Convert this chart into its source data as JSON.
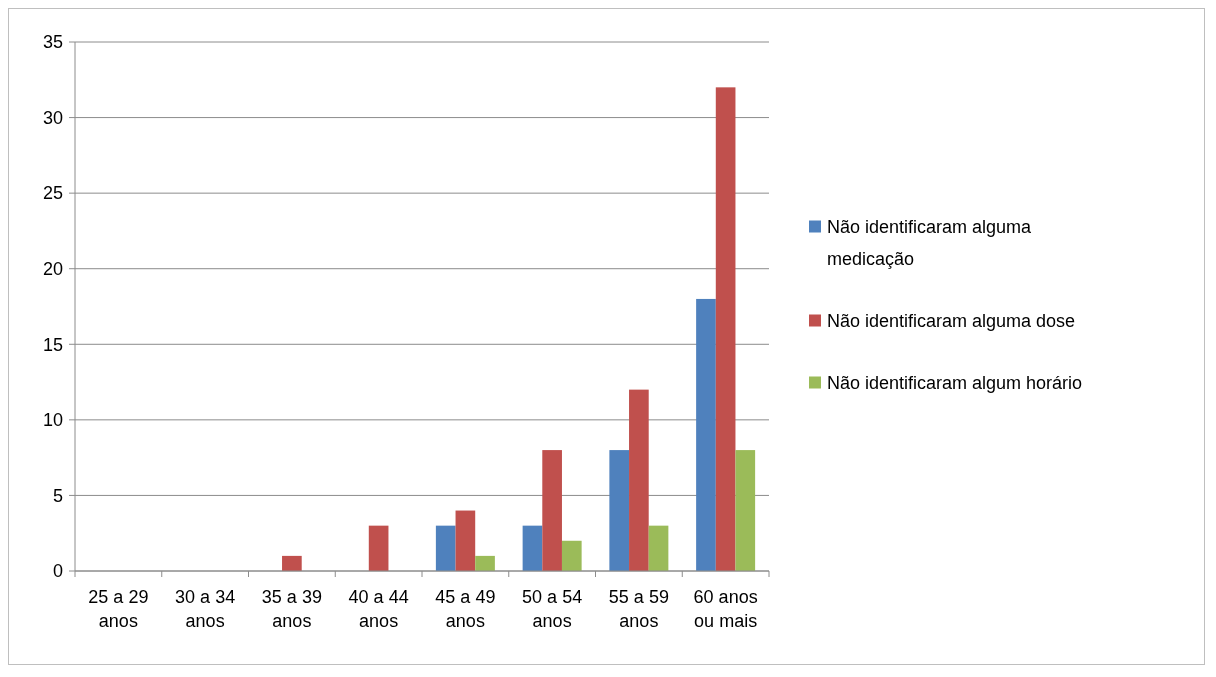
{
  "chart_data": {
    "type": "bar",
    "categories": [
      "25 a 29 anos",
      "30 a 34 anos",
      "35 a 39 anos",
      "40 a 44 anos",
      "45 a 49 anos",
      "50 a 54 anos",
      "55 a 59 anos",
      "60 anos ou mais"
    ],
    "series": [
      {
        "name": "Não identificaram alguma medicação",
        "color": "#4f81bd",
        "values": [
          0,
          0,
          0,
          0,
          3,
          3,
          8,
          18
        ]
      },
      {
        "name": "Não identificaram alguma dose",
        "color": "#c0504d",
        "values": [
          0,
          0,
          1,
          3,
          4,
          8,
          12,
          32
        ]
      },
      {
        "name": "Não identificaram algum horário",
        "color": "#9bbb59",
        "values": [
          0,
          0,
          0,
          0,
          1,
          2,
          3,
          8
        ]
      }
    ],
    "ylim": [
      0,
      35
    ],
    "yticks": [
      0,
      5,
      10,
      15,
      20,
      25,
      30,
      35
    ],
    "grid": "y",
    "legend": "right"
  }
}
